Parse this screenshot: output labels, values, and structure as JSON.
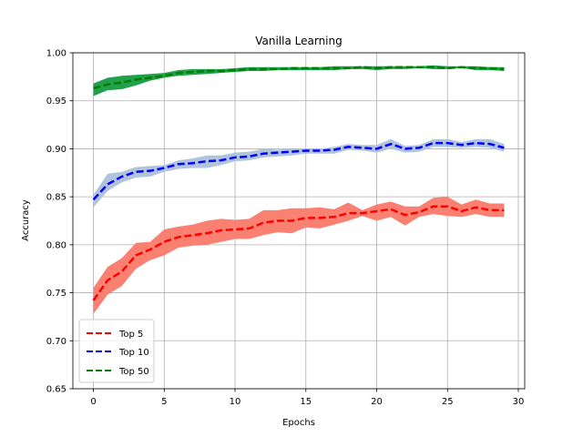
{
  "chart_data": {
    "type": "line",
    "title": "Vanilla Learning",
    "xlabel": "Epochs",
    "ylabel": "Accuracy",
    "xlim": [
      -1.45,
      30.45
    ],
    "ylim": [
      0.65,
      1.0
    ],
    "xticks": [
      0,
      5,
      10,
      15,
      20,
      25,
      30
    ],
    "yticks": [
      0.65,
      0.7,
      0.75,
      0.8,
      0.85,
      0.9,
      0.95,
      1.0
    ],
    "xtick_labels": [
      "0",
      "5",
      "10",
      "15",
      "20",
      "25",
      "30"
    ],
    "ytick_labels": [
      "0.65",
      "0.70",
      "0.75",
      "0.80",
      "0.85",
      "0.90",
      "0.95",
      "1.00"
    ],
    "grid": true,
    "legend_position": "lower-left",
    "x": [
      0,
      1,
      2,
      3,
      4,
      5,
      6,
      7,
      8,
      9,
      10,
      11,
      12,
      13,
      14,
      15,
      16,
      17,
      18,
      19,
      20,
      21,
      22,
      23,
      24,
      25,
      26,
      27,
      28,
      29
    ],
    "series": [
      {
        "name": "Top 5",
        "line_color": "#ff0000",
        "band_color": "#fa8072",
        "values": [
          0.742,
          0.763,
          0.772,
          0.789,
          0.795,
          0.803,
          0.808,
          0.81,
          0.812,
          0.815,
          0.816,
          0.817,
          0.823,
          0.825,
          0.825,
          0.828,
          0.828,
          0.829,
          0.833,
          0.833,
          0.835,
          0.837,
          0.831,
          0.834,
          0.84,
          0.84,
          0.835,
          0.839,
          0.836,
          0.836
        ],
        "lower": [
          0.728,
          0.748,
          0.757,
          0.775,
          0.784,
          0.789,
          0.797,
          0.799,
          0.8,
          0.803,
          0.806,
          0.806,
          0.81,
          0.813,
          0.812,
          0.818,
          0.817,
          0.821,
          0.825,
          0.83,
          0.825,
          0.829,
          0.82,
          0.829,
          0.832,
          0.83,
          0.829,
          0.832,
          0.829,
          0.829
        ],
        "upper": [
          0.755,
          0.777,
          0.786,
          0.802,
          0.803,
          0.816,
          0.819,
          0.821,
          0.825,
          0.827,
          0.826,
          0.827,
          0.836,
          0.836,
          0.838,
          0.838,
          0.839,
          0.837,
          0.844,
          0.836,
          0.842,
          0.845,
          0.84,
          0.84,
          0.849,
          0.85,
          0.842,
          0.847,
          0.843,
          0.843
        ]
      },
      {
        "name": "Top 10",
        "line_color": "#0000ff",
        "band_color": "#b0c4de",
        "values": [
          0.847,
          0.863,
          0.871,
          0.876,
          0.877,
          0.88,
          0.884,
          0.885,
          0.887,
          0.888,
          0.891,
          0.892,
          0.895,
          0.896,
          0.897,
          0.898,
          0.898,
          0.899,
          0.902,
          0.901,
          0.9,
          0.905,
          0.9,
          0.901,
          0.906,
          0.906,
          0.904,
          0.906,
          0.905,
          0.901
        ],
        "lower": [
          0.839,
          0.856,
          0.865,
          0.87,
          0.871,
          0.876,
          0.879,
          0.88,
          0.88,
          0.883,
          0.887,
          0.888,
          0.891,
          0.892,
          0.893,
          0.895,
          0.895,
          0.895,
          0.899,
          0.898,
          0.896,
          0.9,
          0.896,
          0.897,
          0.902,
          0.902,
          0.901,
          0.902,
          0.901,
          0.897
        ],
        "upper": [
          0.852,
          0.874,
          0.876,
          0.881,
          0.882,
          0.883,
          0.888,
          0.89,
          0.893,
          0.893,
          0.896,
          0.897,
          0.9,
          0.899,
          0.9,
          0.9,
          0.9,
          0.902,
          0.905,
          0.904,
          0.904,
          0.91,
          0.903,
          0.904,
          0.91,
          0.91,
          0.907,
          0.91,
          0.91,
          0.905
        ]
      },
      {
        "name": "Top 50",
        "line_color": "#008000",
        "band_color": "#22a04b",
        "values": [
          0.963,
          0.967,
          0.969,
          0.972,
          0.974,
          0.976,
          0.979,
          0.98,
          0.981,
          0.981,
          0.982,
          0.983,
          0.983,
          0.983,
          0.984,
          0.984,
          0.984,
          0.984,
          0.984,
          0.985,
          0.984,
          0.985,
          0.985,
          0.985,
          0.985,
          0.984,
          0.985,
          0.984,
          0.984,
          0.983
        ],
        "lower": [
          0.955,
          0.961,
          0.962,
          0.966,
          0.971,
          0.974,
          0.976,
          0.977,
          0.978,
          0.979,
          0.98,
          0.981,
          0.981,
          0.982,
          0.982,
          0.982,
          0.982,
          0.982,
          0.983,
          0.983,
          0.982,
          0.983,
          0.983,
          0.984,
          0.983,
          0.983,
          0.984,
          0.982,
          0.982,
          0.981
        ],
        "upper": [
          0.968,
          0.974,
          0.976,
          0.977,
          0.978,
          0.979,
          0.982,
          0.983,
          0.983,
          0.983,
          0.984,
          0.985,
          0.985,
          0.985,
          0.985,
          0.985,
          0.985,
          0.986,
          0.986,
          0.986,
          0.986,
          0.986,
          0.986,
          0.986,
          0.987,
          0.986,
          0.986,
          0.986,
          0.985,
          0.985
        ]
      }
    ]
  }
}
